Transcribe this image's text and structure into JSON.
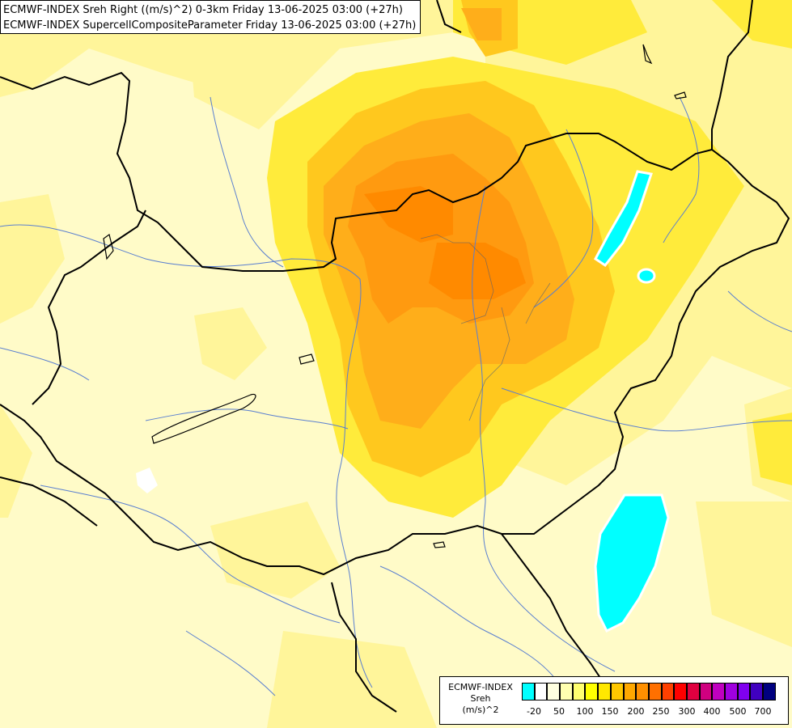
{
  "header": {
    "line1": "ECMWF-INDEX Sreh Right ((m/s)^2) 0-3km Friday 13-06-2025 03:00 (+27h)",
    "line2": "ECMWF-INDEX SupercellCompositeParameter Friday 13-06-2025 03:00 (+27h)"
  },
  "legend": {
    "title_line1": "ECMWF-INDEX",
    "title_line2": "Sreh",
    "title_line3": "(m/s)^2",
    "colors": [
      "#00ffff",
      "#ffffff",
      "#ffffe0",
      "#ffffb0",
      "#ffff70",
      "#ffff00",
      "#ffe800",
      "#ffc800",
      "#ffa800",
      "#ff9000",
      "#ff7000",
      "#ff4000",
      "#ff0000",
      "#e00040",
      "#d00080",
      "#c000c0",
      "#a000e0",
      "#8000f0",
      "#4000c0",
      "#000080"
    ],
    "ticks": [
      "-20",
      "50",
      "100",
      "150",
      "200",
      "250",
      "300",
      "400",
      "500",
      "700"
    ]
  }
}
